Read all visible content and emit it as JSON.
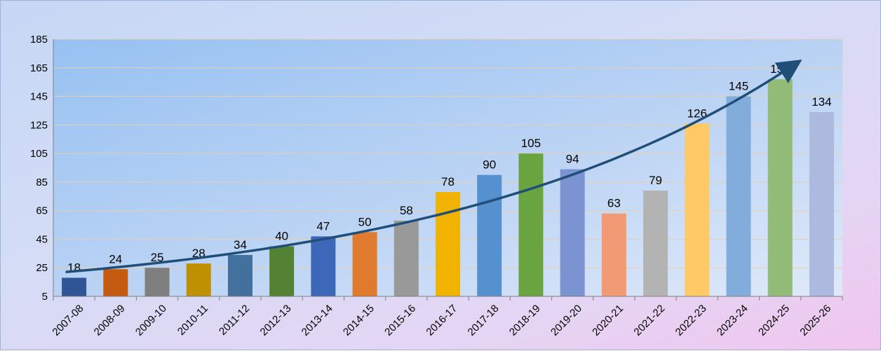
{
  "chart_data": {
    "type": "bar",
    "title": "",
    "xlabel": "",
    "ylabel": "",
    "categories": [
      "2007-08",
      "2008-09",
      "2009-10",
      "2010-11",
      "2011-12",
      "2012-13",
      "2013-14",
      "2014-15",
      "2015-16",
      "2016-17",
      "2017-18",
      "2018-19",
      "2019-20",
      "2020-21",
      "2021-22",
      "2022-23",
      "2023-24",
      "2024-25",
      "2025-26"
    ],
    "values": [
      18,
      24,
      25,
      28,
      34,
      40,
      47,
      50,
      58,
      78,
      90,
      105,
      94,
      63,
      79,
      126,
      145,
      157,
      134
    ],
    "bar_colors": [
      "#2f5597",
      "#c55a11",
      "#7f7f7f",
      "#bf9000",
      "#41719c",
      "#548235",
      "#3d67b8",
      "#e07a2e",
      "#999999",
      "#f2b200",
      "#5591cf",
      "#6aa441",
      "#7b93d1",
      "#f29a74",
      "#b3b3b3",
      "#ffc966",
      "#82acdc",
      "#91bb77",
      "#adb9df"
    ],
    "ylim": [
      5,
      185
    ],
    "yticks": [
      5,
      25,
      45,
      65,
      85,
      105,
      125,
      145,
      165,
      185
    ],
    "grid": true,
    "trend_arrow": true,
    "trend_color": "#1f4e79"
  }
}
